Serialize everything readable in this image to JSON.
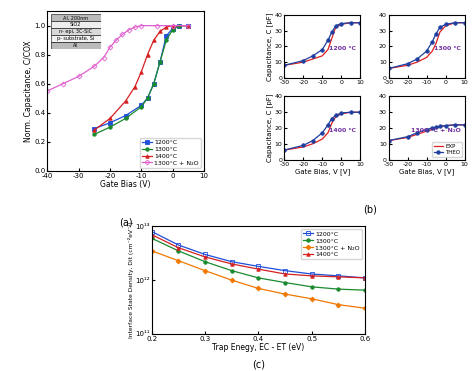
{
  "panel_labels": [
    "(a)",
    "(b)",
    "(c)"
  ],
  "chart_data": [
    {
      "type": "line",
      "x_label": "Gate Bias (V)",
      "y_label": "Norm. Capacitance, C/COX",
      "xlim": [
        -40,
        10
      ],
      "xticks": [
        -40,
        -30,
        -20,
        -10,
        0,
        10
      ],
      "ylim": [
        0.0,
        1.1
      ],
      "yticks": [
        0.0,
        0.2,
        0.4,
        0.6,
        0.8,
        1.0
      ],
      "legend": "lower right",
      "annotations": [
        "Al, 200nm",
        "SiO2",
        "n- epi, 3C-SiC",
        "p- substrate, Si",
        "Al"
      ],
      "series": [
        {
          "name": "1200°C",
          "color": "#1f4fd8",
          "marker": "square",
          "line_style": "solid",
          "x": [
            -25,
            -20,
            -15,
            -10,
            -8,
            -6,
            -4,
            -2,
            0,
            2,
            5
          ],
          "values": [
            0.29,
            0.33,
            0.38,
            0.45,
            0.5,
            0.6,
            0.75,
            0.93,
            0.98,
            1.0,
            1.0
          ]
        },
        {
          "name": "1300°C",
          "color": "#1a8a2e",
          "marker": "circle",
          "line_style": "solid",
          "x": [
            -25,
            -20,
            -15,
            -10,
            -8,
            -6,
            -4,
            -2,
            0,
            2,
            5
          ],
          "values": [
            0.25,
            0.3,
            0.36,
            0.44,
            0.5,
            0.6,
            0.75,
            0.9,
            0.97,
            1.0,
            1.0
          ]
        },
        {
          "name": "1400°C",
          "color": "#d62020",
          "marker": "triangle",
          "line_style": "solid",
          "x": [
            -25,
            -20,
            -15,
            -12,
            -10,
            -8,
            -6,
            -4,
            -2,
            0,
            5
          ],
          "values": [
            0.28,
            0.36,
            0.48,
            0.58,
            0.68,
            0.8,
            0.9,
            0.96,
            0.99,
            1.0,
            1.0
          ]
        },
        {
          "name": "1300°C + N₂O",
          "color": "#e060d0",
          "marker": "open_diamond",
          "line_style": "solid",
          "x": [
            -40,
            -35,
            -30,
            -25,
            -22,
            -20,
            -18,
            -16,
            -14,
            -12,
            -10,
            -5,
            0,
            5
          ],
          "values": [
            0.55,
            0.6,
            0.65,
            0.72,
            0.78,
            0.85,
            0.9,
            0.94,
            0.97,
            0.99,
            1.0,
            1.0,
            1.0,
            1.0
          ]
        }
      ]
    },
    {
      "type": "line",
      "title": "1200 °C",
      "y_label": "Capacitance, C [pF]",
      "xlim": [
        -30,
        10
      ],
      "xticks": [
        -30,
        -20,
        -10,
        0,
        10
      ],
      "ylim": [
        0,
        40
      ],
      "yticks": [
        0,
        10,
        20,
        30,
        40
      ],
      "series": [
        {
          "name": "EXP",
          "color": "#e02020",
          "marker": "none",
          "line_style": "solid",
          "x": [
            -30,
            -20,
            -15,
            -10,
            -7,
            -5,
            -3,
            0,
            5,
            10
          ],
          "values": [
            8,
            10,
            12,
            14,
            18,
            25,
            32,
            34,
            35,
            35
          ]
        },
        {
          "name": "THEO",
          "color": "#1f3fa0",
          "marker": "circle",
          "line_style": "solid",
          "x": [
            -30,
            -20,
            -15,
            -10,
            -7,
            -5,
            -3,
            0,
            5,
            10
          ],
          "values": [
            8,
            11,
            14,
            18,
            24,
            29,
            33,
            34.5,
            35,
            35
          ]
        }
      ]
    },
    {
      "type": "line",
      "title": "1300 °C",
      "xlim": [
        -30,
        10
      ],
      "xticks": [
        -30,
        -20,
        -10,
        0,
        10
      ],
      "ylim": [
        0,
        40
      ],
      "yticks": [
        0,
        10,
        20,
        30,
        40
      ],
      "series": [
        {
          "name": "EXP",
          "color": "#e02020",
          "marker": "none",
          "line_style": "solid",
          "x": [
            -30,
            -20,
            -15,
            -10,
            -7,
            -5,
            -3,
            0,
            5,
            10
          ],
          "values": [
            6,
            8,
            10,
            13,
            17,
            22,
            29,
            33,
            35,
            35
          ]
        },
        {
          "name": "THEO",
          "color": "#1f3fa0",
          "marker": "circle",
          "line_style": "solid",
          "x": [
            -30,
            -20,
            -15,
            -10,
            -7,
            -5,
            -3,
            0,
            5,
            10
          ],
          "values": [
            6,
            9,
            12,
            17,
            23,
            28,
            32,
            34,
            35,
            35
          ]
        }
      ]
    },
    {
      "type": "line",
      "title": "1400 °C",
      "x_label": "Gate Bias, V [V]",
      "y_label": "Capacitance, C [pF]",
      "xlim": [
        -30,
        10
      ],
      "xticks": [
        -30,
        -20,
        -10,
        0,
        10
      ],
      "ylim": [
        0,
        40
      ],
      "yticks": [
        0,
        10,
        20,
        30,
        40
      ],
      "series": [
        {
          "name": "EXP",
          "color": "#e02020",
          "marker": "none",
          "line_style": "solid",
          "x": [
            -30,
            -20,
            -15,
            -10,
            -7,
            -5,
            -3,
            0,
            5,
            10
          ],
          "values": [
            6,
            8,
            10,
            13,
            17,
            23,
            27,
            29,
            30,
            30
          ]
        },
        {
          "name": "THEO",
          "color": "#1f3fa0",
          "marker": "circle",
          "line_style": "solid",
          "x": [
            -30,
            -20,
            -15,
            -10,
            -7,
            -5,
            -3,
            0,
            5,
            10
          ],
          "values": [
            6,
            9,
            12,
            17,
            22,
            26,
            28,
            29.5,
            30,
            30
          ]
        }
      ]
    },
    {
      "type": "line",
      "title": "1300 °C + N₂O",
      "x_label": "Gate Bias, V [V]",
      "xlim": [
        -30,
        10
      ],
      "xticks": [
        -30,
        -20,
        -10,
        0,
        10
      ],
      "ylim": [
        0,
        40
      ],
      "yticks": [
        0,
        10,
        20,
        30,
        40
      ],
      "legend": "lower right",
      "series": [
        {
          "name": "EXP",
          "color": "#e02020",
          "marker": "none",
          "line_style": "solid",
          "x": [
            -30,
            -20,
            -15,
            -10,
            -7,
            -5,
            -3,
            0,
            5,
            10
          ],
          "values": [
            12,
            14,
            16,
            18,
            19,
            20,
            21,
            21.5,
            22,
            22
          ]
        },
        {
          "name": "THEO",
          "color": "#1f3fa0",
          "marker": "circle",
          "line_style": "solid",
          "x": [
            -30,
            -20,
            -15,
            -10,
            -7,
            -5,
            -3,
            0,
            5,
            10
          ],
          "values": [
            12,
            14.5,
            17,
            19,
            20,
            20.5,
            21,
            21.5,
            22,
            22
          ]
        }
      ]
    },
    {
      "type": "line",
      "log": "y",
      "x_label": "Trap Enegy, EC - ET (eV)",
      "y_label": "Interface State Density, Dit (cm⁻²eV⁻¹)",
      "xlim": [
        0.2,
        0.6
      ],
      "xticks": [
        0.2,
        0.3,
        0.4,
        0.5,
        0.6
      ],
      "ylim": [
        100000000000.0,
        10000000000000.0
      ],
      "yticks": [
        {
          "value": 100000000000.0,
          "label": "10¹¹"
        },
        {
          "value": 1000000000000.0,
          "label": "10¹²"
        },
        {
          "value": 10000000000000.0,
          "label": "10¹³"
        }
      ],
      "legend": "upper right",
      "series": [
        {
          "name": "1200°C",
          "color": "#1f4fd8",
          "marker": "open_square",
          "line_style": "solid",
          "x": [
            0.2,
            0.25,
            0.3,
            0.35,
            0.4,
            0.45,
            0.5,
            0.55,
            0.6
          ],
          "values": [
            8000000000000.0,
            4500000000000.0,
            3000000000000.0,
            2200000000000.0,
            1800000000000.0,
            1500000000000.0,
            1300000000000.0,
            1200000000000.0,
            1100000000000.0
          ]
        },
        {
          "name": "1300°C",
          "color": "#1a8a2e",
          "marker": "circle",
          "line_style": "solid",
          "x": [
            0.2,
            0.25,
            0.3,
            0.35,
            0.4,
            0.45,
            0.5,
            0.55,
            0.6
          ],
          "values": [
            6000000000000.0,
            3500000000000.0,
            2200000000000.0,
            1500000000000.0,
            1100000000000.0,
            900000000000.0,
            750000000000.0,
            680000000000.0,
            650000000000.0
          ]
        },
        {
          "name": "1300°C + N₂O",
          "color": "#f07800",
          "marker": "diamond",
          "line_style": "solid",
          "x": [
            0.2,
            0.25,
            0.3,
            0.35,
            0.4,
            0.45,
            0.5,
            0.55,
            0.6
          ],
          "values": [
            3500000000000.0,
            2300000000000.0,
            1500000000000.0,
            1000000000000.0,
            700000000000.0,
            550000000000.0,
            450000000000.0,
            350000000000.0,
            300000000000.0
          ]
        },
        {
          "name": "1400°C",
          "color": "#d62020",
          "marker": "triangle",
          "line_style": "solid",
          "x": [
            0.2,
            0.25,
            0.3,
            0.35,
            0.4,
            0.45,
            0.5,
            0.55,
            0.6
          ],
          "values": [
            7000000000000.0,
            4000000000000.0,
            2700000000000.0,
            2000000000000.0,
            1600000000000.0,
            1300000000000.0,
            1200000000000.0,
            1150000000000.0,
            1100000000000.0
          ]
        }
      ]
    }
  ]
}
